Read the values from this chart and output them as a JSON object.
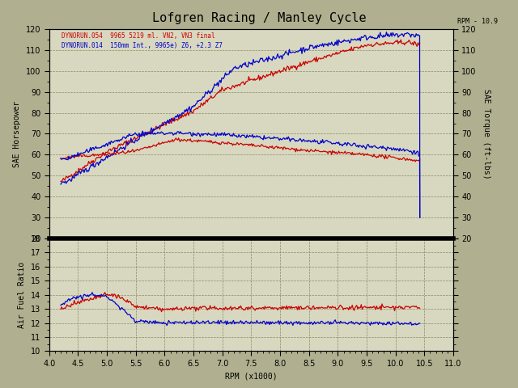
{
  "title": "Lofgren Racing / Manley Cycle",
  "legend1": "DYNORUN.054  9965 5219 ml. VN2, VN3 final",
  "legend2": "DYNORUN.014  150mm Int., 9965e) Z6, +2.3 Z7",
  "rpm_min": 4.0,
  "rpm_max": 11.0,
  "hp_ylim": [
    20,
    120
  ],
  "torque_ylim": [
    20,
    120
  ],
  "afr_ylim": [
    10,
    18
  ],
  "color_red": "#cc0000",
  "color_blue": "#0000cc",
  "background": "#d8d8c0",
  "fig_bg": "#b0b090",
  "rpm_label": "RPM (x1000)",
  "hp_label": "SAE Horsepower",
  "torque_label": "SAE Torque (ft-lbs)",
  "afr_label": "Air Fuel Ratio",
  "rpm_note": "RPM - 10.9",
  "grid_color": "#888866",
  "separator_color": "#000000",
  "text_color": "#000000"
}
